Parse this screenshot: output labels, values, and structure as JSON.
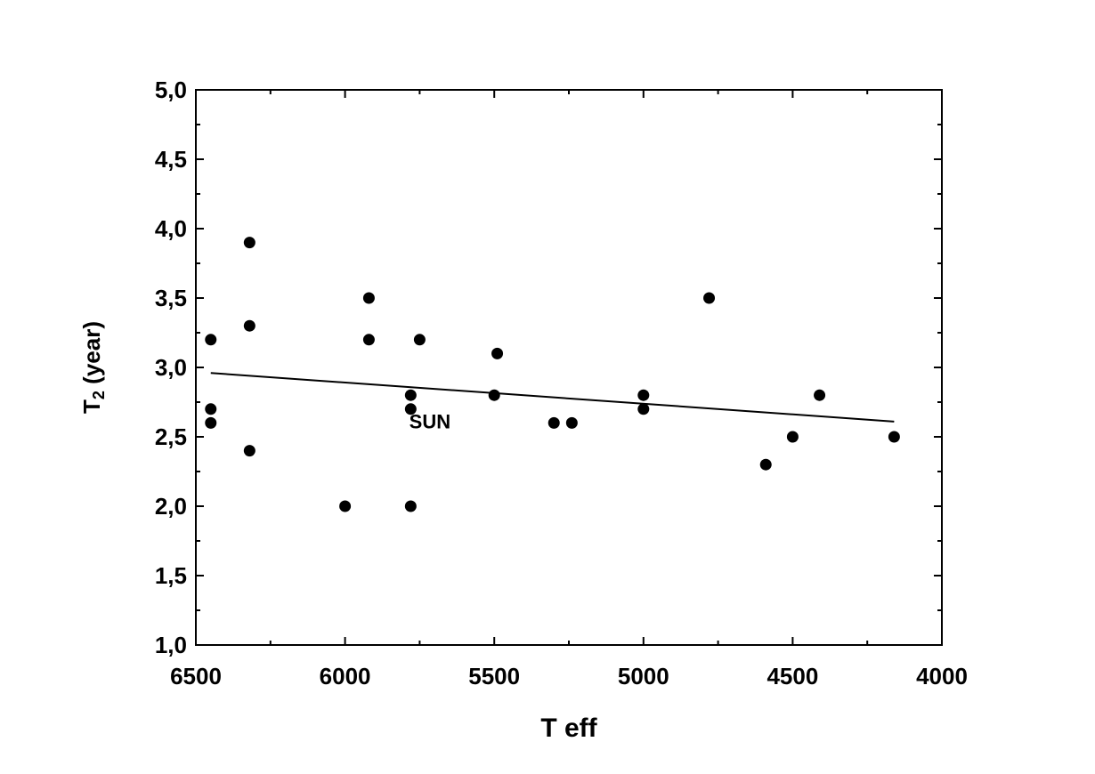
{
  "chart_data": {
    "type": "scatter",
    "xlabel": "T eff",
    "ylabel_main": "T",
    "ylabel_sub": "2",
    "ylabel_rest": " (year)",
    "xlim": [
      6500,
      4000
    ],
    "ylim": [
      1.0,
      5.0
    ],
    "x_reversed": true,
    "grid": false,
    "x_ticks": [
      {
        "value": 6500,
        "label": "6500"
      },
      {
        "value": 6000,
        "label": "6000"
      },
      {
        "value": 5500,
        "label": "5500"
      },
      {
        "value": 5000,
        "label": "5000"
      },
      {
        "value": 4500,
        "label": "4500"
      },
      {
        "value": 4000,
        "label": "4000"
      }
    ],
    "y_ticks": [
      {
        "value": 1.0,
        "label": "1,0"
      },
      {
        "value": 1.5,
        "label": "1,5"
      },
      {
        "value": 2.0,
        "label": "2,0"
      },
      {
        "value": 2.5,
        "label": "2,5"
      },
      {
        "value": 3.0,
        "label": "3,0"
      },
      {
        "value": 3.5,
        "label": "3,5"
      },
      {
        "value": 4.0,
        "label": "4,0"
      },
      {
        "value": 4.5,
        "label": "4,5"
      },
      {
        "value": 5.0,
        "label": "5,0"
      }
    ],
    "points": [
      {
        "x": 6450,
        "y": 3.2
      },
      {
        "x": 6450,
        "y": 2.7
      },
      {
        "x": 6450,
        "y": 2.6
      },
      {
        "x": 6320,
        "y": 3.9
      },
      {
        "x": 6320,
        "y": 3.3
      },
      {
        "x": 6320,
        "y": 2.4
      },
      {
        "x": 6000,
        "y": 2.0
      },
      {
        "x": 5920,
        "y": 3.5
      },
      {
        "x": 5920,
        "y": 3.2
      },
      {
        "x": 5780,
        "y": 2.8
      },
      {
        "x": 5780,
        "y": 2.7
      },
      {
        "x": 5780,
        "y": 2.0
      },
      {
        "x": 5750,
        "y": 3.2
      },
      {
        "x": 5500,
        "y": 2.8
      },
      {
        "x": 5490,
        "y": 3.1
      },
      {
        "x": 5300,
        "y": 2.6
      },
      {
        "x": 5240,
        "y": 2.6
      },
      {
        "x": 5000,
        "y": 2.8
      },
      {
        "x": 5000,
        "y": 2.7
      },
      {
        "x": 4780,
        "y": 3.5
      },
      {
        "x": 4590,
        "y": 2.3
      },
      {
        "x": 4500,
        "y": 2.5
      },
      {
        "x": 4410,
        "y": 2.8
      },
      {
        "x": 4160,
        "y": 2.5
      }
    ],
    "fit_line": {
      "x": [
        6450,
        4160
      ],
      "y": [
        2.96,
        2.61
      ]
    },
    "annotations": [
      {
        "text": "SUN",
        "x": 5785,
        "y": 2.56
      }
    ]
  }
}
